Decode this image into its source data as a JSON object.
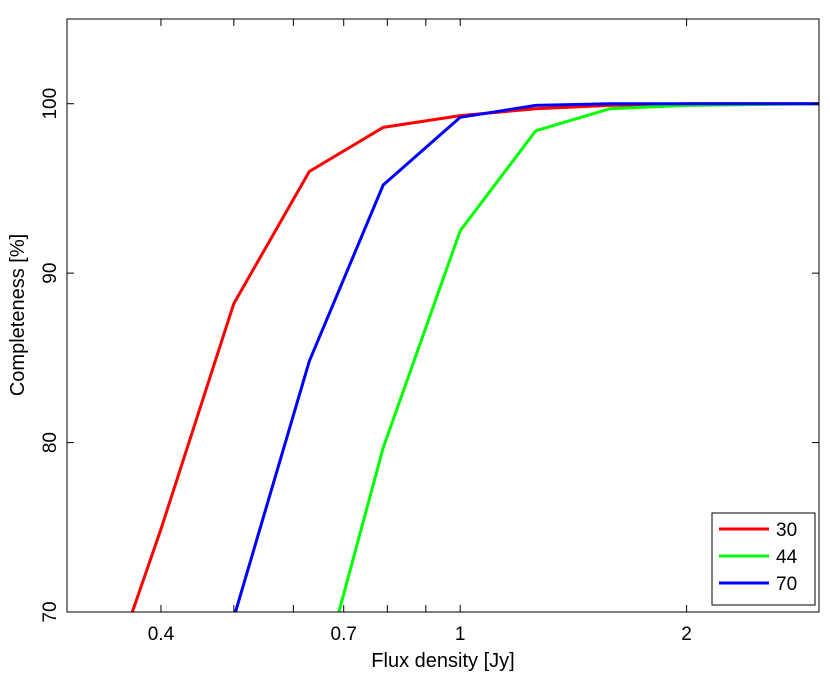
{
  "chart_data": {
    "type": "line",
    "xlabel": "Flux density [Jy]",
    "ylabel": "Completeness [%]",
    "xscale": "log",
    "xlim": [
      0.3,
      3.0
    ],
    "ylim": [
      70,
      105
    ],
    "x_ticks": [
      0.4,
      0.5,
      0.6,
      0.7,
      0.8,
      0.9,
      1,
      2,
      3
    ],
    "x_tick_labels": [
      {
        "value": 0.4,
        "label": "0.4"
      },
      {
        "value": 0.7,
        "label": "0.7"
      },
      {
        "value": 1,
        "label": "1"
      },
      {
        "value": 2,
        "label": "2"
      }
    ],
    "y_ticks": [
      {
        "value": 70,
        "label": "70"
      },
      {
        "value": 80,
        "label": "80"
      },
      {
        "value": 90,
        "label": "90"
      },
      {
        "value": 100,
        "label": "100"
      }
    ],
    "grid": false,
    "legend_position": "bottom-right",
    "series": [
      {
        "name": "30",
        "color": "#ff0000",
        "points": [
          [
            0.36,
            69
          ],
          [
            0.4,
            74.9
          ],
          [
            0.5,
            88.2
          ],
          [
            0.63,
            96.0
          ],
          [
            0.79,
            98.6
          ],
          [
            1.0,
            99.3
          ],
          [
            1.26,
            99.7
          ],
          [
            1.58,
            99.9
          ],
          [
            2.0,
            100
          ],
          [
            3.0,
            100
          ]
        ]
      },
      {
        "name": "44",
        "color": "#00ff00",
        "points": [
          [
            0.68,
            69
          ],
          [
            0.79,
            79.7
          ],
          [
            1.0,
            92.5
          ],
          [
            1.26,
            98.4
          ],
          [
            1.58,
            99.7
          ],
          [
            2.0,
            99.9
          ],
          [
            3.0,
            100
          ]
        ]
      },
      {
        "name": "70",
        "color": "#0000ff",
        "points": [
          [
            0.495,
            69
          ],
          [
            0.63,
            84.8
          ],
          [
            0.79,
            95.2
          ],
          [
            1.0,
            99.2
          ],
          [
            1.26,
            99.9
          ],
          [
            1.58,
            100
          ],
          [
            2.0,
            100
          ],
          [
            3.0,
            100
          ]
        ]
      }
    ]
  }
}
